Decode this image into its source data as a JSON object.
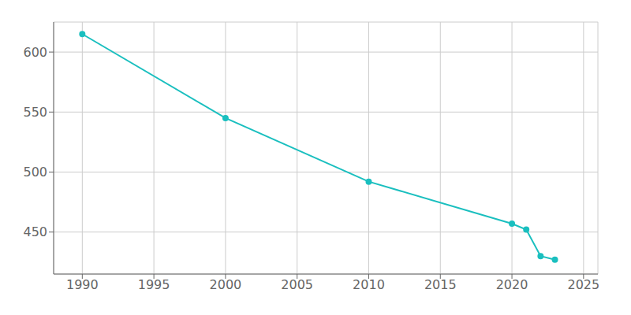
{
  "chart_data": {
    "type": "line",
    "x": [
      1990,
      2000,
      2010,
      2020,
      2021,
      2022,
      2023
    ],
    "values": [
      615,
      545,
      492,
      457,
      452,
      430,
      427
    ],
    "color": "#1abfbf",
    "marker": "circle",
    "xlim": [
      1988,
      2026
    ],
    "ylim": [
      415,
      625
    ],
    "xticks": [
      1990,
      1995,
      2000,
      2005,
      2010,
      2015,
      2020,
      2025
    ],
    "yticks": [
      450,
      500,
      550,
      600
    ],
    "grid": true
  }
}
